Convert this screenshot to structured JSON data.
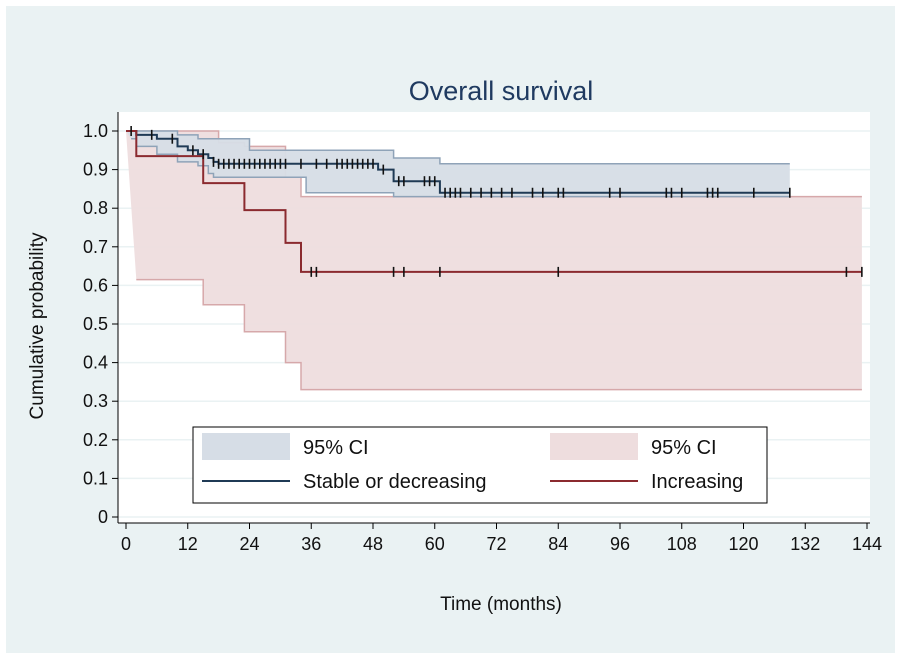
{
  "chart_data": {
    "type": "line",
    "title": "Overall survival",
    "xlabel": "Time (months)",
    "ylabel": "Cumulative probability",
    "xlim": [
      0,
      144
    ],
    "ylim": [
      0,
      1
    ],
    "x_ticks": [
      "0",
      "12",
      "24",
      "36",
      "48",
      "60",
      "72",
      "84",
      "96",
      "108",
      "120",
      "132",
      "144"
    ],
    "y_ticks": [
      "0",
      "0.1",
      "0.2",
      "0.3",
      "0.4",
      "0.5",
      "0.6",
      "0.7",
      "0.8",
      "0.9",
      "1.0"
    ],
    "grid": true,
    "legend_position": "bottom-inside",
    "legend": {
      "ci_label_1": "95% CI",
      "ci_label_2": "95% CI",
      "series_label_1": "Stable or decreasing",
      "series_label_2": "Increasing"
    },
    "colors": {
      "stable_line": "#1f3a55",
      "stable_ci_fill": "#d6dde6",
      "stable_ci_edge": "#8fa3b8",
      "increasing_line": "#8b2a2f",
      "increasing_ci_fill": "#eeddde",
      "increasing_ci_edge": "#d6a8aa",
      "background": "#eaf2f3",
      "plot_background": "#ffffff"
    },
    "series": [
      {
        "name": "Stable or decreasing",
        "steps": [
          [
            0,
            1.0
          ],
          [
            2,
            0.99
          ],
          [
            6,
            0.98
          ],
          [
            10,
            0.96
          ],
          [
            12,
            0.95
          ],
          [
            14,
            0.94
          ],
          [
            16,
            0.93
          ],
          [
            17,
            0.92
          ],
          [
            18,
            0.915
          ],
          [
            49,
            0.9
          ],
          [
            52,
            0.87
          ],
          [
            61,
            0.84
          ],
          [
            129,
            0.84
          ]
        ],
        "ci_upper": [
          [
            0,
            1.0
          ],
          [
            6,
            1.0
          ],
          [
            10,
            0.99
          ],
          [
            14,
            0.98
          ],
          [
            24,
            0.95
          ],
          [
            49,
            0.95
          ],
          [
            52,
            0.93
          ],
          [
            61,
            0.915
          ],
          [
            129,
            0.915
          ]
        ],
        "ci_lower": [
          [
            1,
            0.98
          ],
          [
            2,
            0.96
          ],
          [
            6,
            0.94
          ],
          [
            10,
            0.92
          ],
          [
            14,
            0.91
          ],
          [
            16,
            0.89
          ],
          [
            17,
            0.88
          ],
          [
            35,
            0.84
          ],
          [
            49,
            0.84
          ],
          [
            52,
            0.83
          ],
          [
            61,
            0.83
          ],
          [
            129,
            0.83
          ]
        ],
        "censor_times": [
          1,
          5,
          9,
          13,
          15,
          17,
          18,
          19,
          20,
          21,
          22,
          23,
          24,
          25,
          26,
          27,
          28,
          29,
          30,
          31,
          34,
          37,
          39,
          41,
          42,
          43,
          44,
          45,
          46,
          47,
          48,
          50,
          53,
          54,
          58,
          59,
          60,
          62,
          63,
          64,
          65,
          67,
          69,
          71,
          73,
          75,
          79,
          81,
          84,
          85,
          94,
          96,
          105,
          106,
          108,
          113,
          114,
          115,
          122,
          129
        ]
      },
      {
        "name": "Increasing",
        "steps": [
          [
            0,
            1.0
          ],
          [
            2,
            0.935
          ],
          [
            15,
            0.865
          ],
          [
            23,
            0.795
          ],
          [
            31,
            0.71
          ],
          [
            34,
            0.635
          ],
          [
            143,
            0.635
          ]
        ],
        "ci_upper": [
          [
            0,
            1.0
          ],
          [
            15,
            1.0
          ],
          [
            18,
            0.97
          ],
          [
            23,
            0.96
          ],
          [
            31,
            0.88
          ],
          [
            34,
            0.83
          ],
          [
            143,
            0.83
          ]
        ],
        "ci_lower": [
          [
            2,
            0.615
          ],
          [
            15,
            0.55
          ],
          [
            23,
            0.48
          ],
          [
            31,
            0.4
          ],
          [
            34,
            0.33
          ],
          [
            143,
            0.33
          ]
        ],
        "censor_times": [
          36,
          37,
          52,
          54,
          61,
          84,
          140,
          143
        ]
      }
    ]
  }
}
